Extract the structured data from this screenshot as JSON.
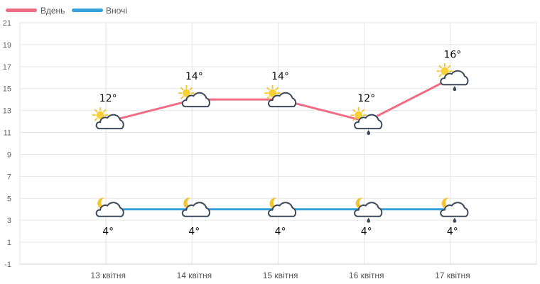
{
  "chart_data": {
    "type": "line",
    "categories": [
      "13 квітня",
      "14 квітня",
      "15 квітня",
      "16 квітня",
      "17 квітня"
    ],
    "ylim": [
      -1,
      21
    ],
    "yticks": [
      21,
      19,
      17,
      15,
      13,
      11,
      9,
      7,
      5,
      3,
      1,
      -1
    ],
    "grid": true,
    "legend_position": "top-left",
    "series": [
      {
        "name": "Вдень",
        "color": "#f06b84",
        "values": [
          12,
          14,
          14,
          12,
          16
        ],
        "labels": [
          "12°",
          "14°",
          "14°",
          "12°",
          "16°"
        ],
        "label_position": "above",
        "icons": [
          "sun-cloud-icon",
          "sun-cloud-icon",
          "sun-cloud-icon",
          "sun-cloud-rain-icon",
          "sun-cloud-rain-icon"
        ]
      },
      {
        "name": "Вночі",
        "color": "#36a2dc",
        "values": [
          4,
          4,
          4,
          4,
          4
        ],
        "labels": [
          "4°",
          "4°",
          "4°",
          "4°",
          "4°"
        ],
        "label_position": "below",
        "icons": [
          "moon-cloud-icon",
          "moon-cloud-icon",
          "moon-cloud-icon",
          "moon-cloud-rain-icon",
          "moon-cloud-rain-icon"
        ]
      }
    ]
  }
}
